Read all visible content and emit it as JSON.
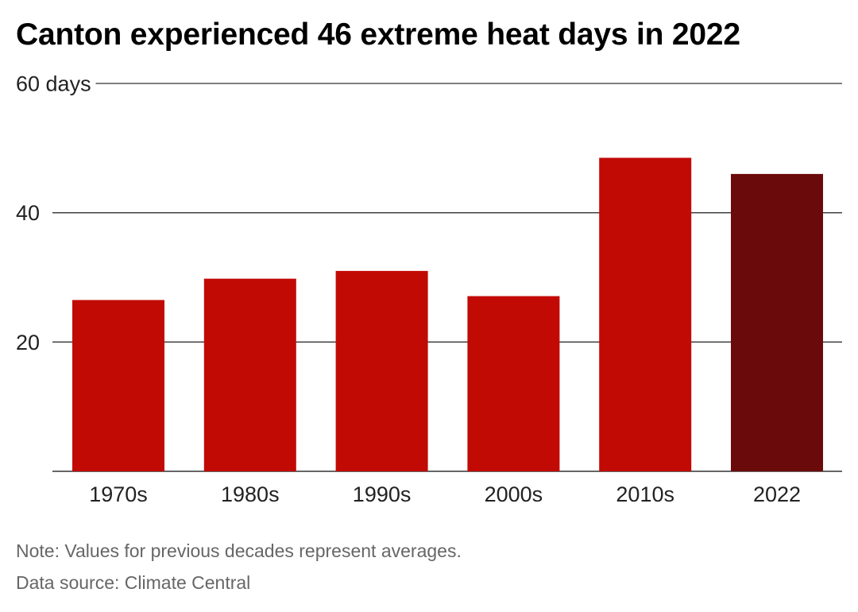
{
  "title": "Canton experienced 46 extreme heat days in 2022",
  "chart_data": {
    "type": "bar",
    "title": "Canton experienced 46 extreme heat days in 2022",
    "categories": [
      "1970s",
      "1980s",
      "1990s",
      "2000s",
      "2010s",
      "2022"
    ],
    "values": [
      26.5,
      29.8,
      31.0,
      27.1,
      48.5,
      46
    ],
    "ylim": [
      0,
      60
    ],
    "y_ticks": [
      {
        "value": 20,
        "label": "20"
      },
      {
        "value": 40,
        "label": "40"
      },
      {
        "value": 60,
        "label": "60 days"
      }
    ],
    "xlabel": "",
    "ylabel": "",
    "grid": true,
    "colors": {
      "default_bar": "#c20a05",
      "highlight_bar": "#6b0a0b",
      "gridline": "#333333",
      "axis_text": "#222222"
    },
    "highlight_category": "2022"
  },
  "footer": {
    "note": "Note: Values for previous decades represent averages.",
    "source": "Data source: Climate Central"
  }
}
